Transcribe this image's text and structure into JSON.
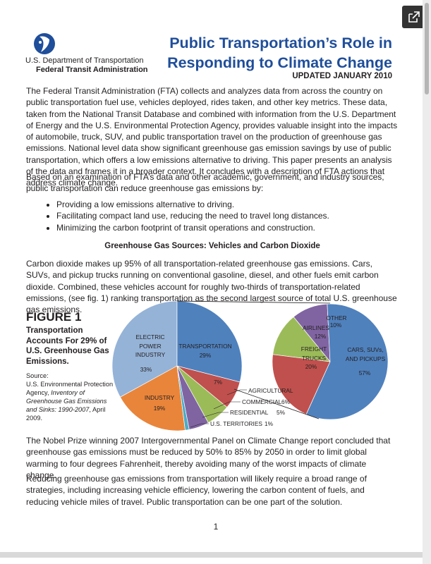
{
  "header": {
    "agency_lines": [
      "U.S. Department of Transportation",
      "Federal Transit Administration"
    ],
    "title_lines": [
      "Public Transportation’s Role in",
      "Responding to Climate Change"
    ],
    "updated": "UPDATED JANUARY 2010"
  },
  "intro": "The Federal Transit Administration (FTA) collects and analyzes data from across the country on public transportation fuel use, vehicles deployed, rides taken, and other key metrics.  These data, taken from the National Transit Database and combined with information from the U.S. Department of Energy and the U.S. Environmental Protection Agency, provides valuable insight into the impacts of automobile, truck, SUV, and public transportation travel on the production of greenhouse gas emissions.  National level data show significant greenhouse gas emission savings by use of public transportation, which offers a low emissions alternative to driving.  This paper presents an analysis of the data and frames it in a broader context.  It concludes with a description of FTA actions that address climate change.",
  "based_on": "Based on an examination of FTA’s data and other academic, government, and industry sources, public transportation can reduce greenhouse gas emissions by:",
  "bullets": [
    "Providing a low emissions alternative to driving.",
    "Facilitating compact land use, reducing the need to travel long distances.",
    "Minimizing the carbon footprint of transit operations and construction."
  ],
  "section_heading": "Greenhouse Gas Sources: Vehicles and Carbon Dioxide",
  "carbon_paragraph": "Carbon dioxide makes up 95% of all transportation-related greenhouse gas emissions. Cars, SUVs, and pickup trucks running on conventional gasoline, diesel, and other fuels emit carbon dioxide.  Combined, these vehicles account for roughly two-thirds of transportation-related emissions, (see fig. 1)  ranking transportation as the second largest source of total U.S. greenhouse gas emissions.",
  "figure": {
    "label": "FIGURE 1",
    "caption": "Transportation Accounts For 29% of U.S. Greenhouse Gas Emissions.",
    "source_label": "Source:",
    "source_agency": "U.S. Environmental Protection Agency, ",
    "source_title": "Inventory of Greenhouse Gas Emissions and Sinks: 1990-2007",
    "source_date": ", April 2009.",
    "main_pie": {
      "slices": [
        {
          "name": "TRANSPORTATION",
          "value": 29,
          "value_label": "29%",
          "color": "#4f81bd"
        },
        {
          "name": "AGRICULTURAL",
          "value": 7,
          "value_label": "7%",
          "color": "#c0504d"
        },
        {
          "name": "COMMERCIAL",
          "value": 6,
          "value_label": "6%",
          "color": "#9bbb59"
        },
        {
          "name": "RESIDENTIAL",
          "value": 5,
          "value_label": "5%",
          "color": "#8064a2"
        },
        {
          "name": "U.S. TERRITORIES",
          "value": 1,
          "value_label": "1%",
          "color": "#4bacc6"
        },
        {
          "name": "INDUSTRY",
          "value": 19,
          "value_label": "19%",
          "color": "#e9853a"
        },
        {
          "name": "ELECTRIC POWER INDUSTRY",
          "value": 33,
          "value_label": "33%",
          "color": "#95b3d7"
        }
      ]
    },
    "detail_pie": {
      "slices": [
        {
          "name": "CARS, SUVs, AND PICKUPS",
          "value": 57,
          "value_label": "57%",
          "color": "#4f81bd"
        },
        {
          "name": "FREIGHT TRUCKS",
          "value": 20,
          "value_label": "20%",
          "color": "#c0504d"
        },
        {
          "name": "AIRLINES",
          "value": 12,
          "value_label": "12%",
          "color": "#9bbb59"
        },
        {
          "name": "OTHER",
          "value": 10,
          "value_label": "10%",
          "color": "#8064a2"
        }
      ]
    }
  },
  "nobel_paragraph": "The Nobel Prize winning 2007 Intergovernmental Panel on Climate Change report concluded that greenhouse gas emissions must be reduced by 50% to 85% by 2050 in order to limit global warming to four degrees Fahrenheit, thereby avoiding many of the worst impacts of climate change.",
  "reducing_paragraph": "Reducing greenhouse gas emissions from transportation will likely require a broad range of strategies, including increasing vehicle efficiency, lowering the carbon content of fuels, and reducing vehicle miles of travel.  Public transportation can be one part of the solution.",
  "page_number": "1"
}
